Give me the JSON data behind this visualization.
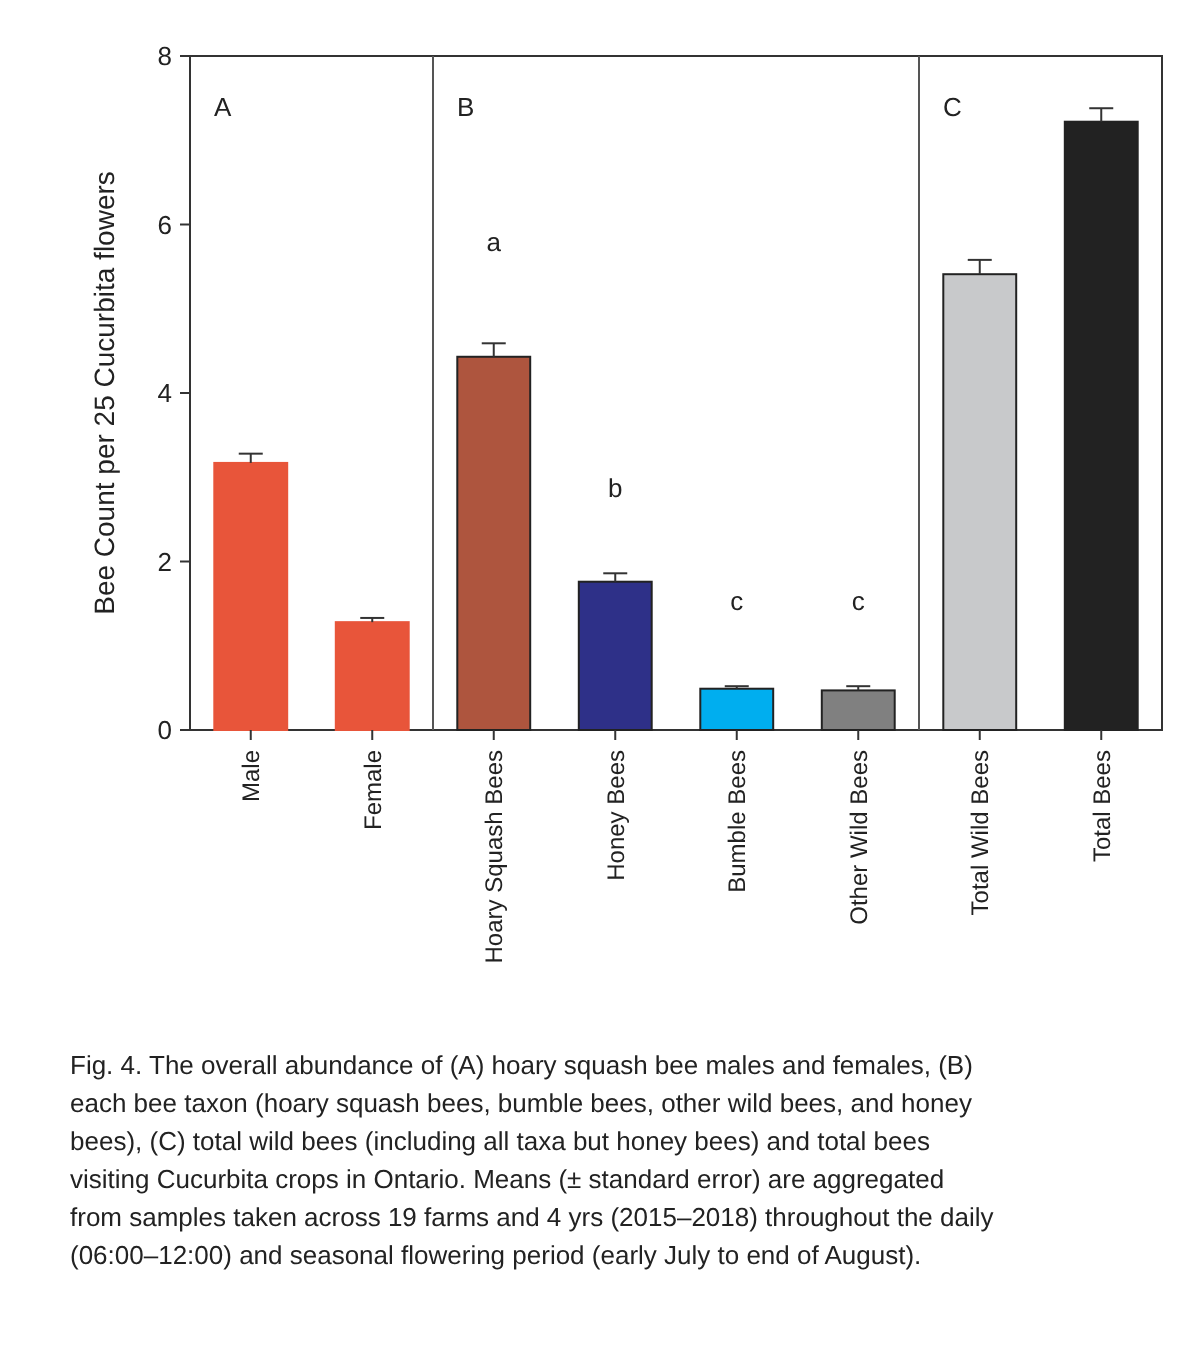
{
  "chart_data": {
    "type": "bar",
    "ylabel": "Bee Count per 25 Cucurbita flowers",
    "categories": [
      "Male",
      "Female",
      "Hoary Squash Bees",
      "Honey Bees",
      "Bumble Bees",
      "Other Wild Bees",
      "Total Wild Bees",
      "Total Bees"
    ],
    "values": [
      3.17,
      1.28,
      4.43,
      1.76,
      0.49,
      0.47,
      5.41,
      7.22
    ],
    "errors": [
      0.11,
      0.05,
      0.16,
      0.1,
      0.03,
      0.05,
      0.17,
      0.16
    ],
    "colors": [
      "#e8553a",
      "#e8553a",
      "#ae553e",
      "#2e3088",
      "#00aeef",
      "#808080",
      "#c8c9cb",
      "#222222"
    ],
    "ylim": [
      0,
      8
    ],
    "yticks": [
      0,
      2,
      4,
      6,
      8
    ],
    "annotations": [
      "A",
      "B",
      "C",
      "a",
      "b",
      "c",
      "c",
      "Fig. 4. The overall abundance of (A) hoary squash bee males and females, (B) each bee taxon (hoary squash bees, bumble bees, other wild bees, and honey bees), (C) total wild bees (including all taxa but honey bees) and total bees visiting Cucurbita crops in Ontario. Means (± standard error) are aggregated from samples taken across 19 farms and 4 yrs (2015–2018) throughout the daily (06:00–12:00) and seasonal flowering period (early July to end of August)."
    ]
  }
}
